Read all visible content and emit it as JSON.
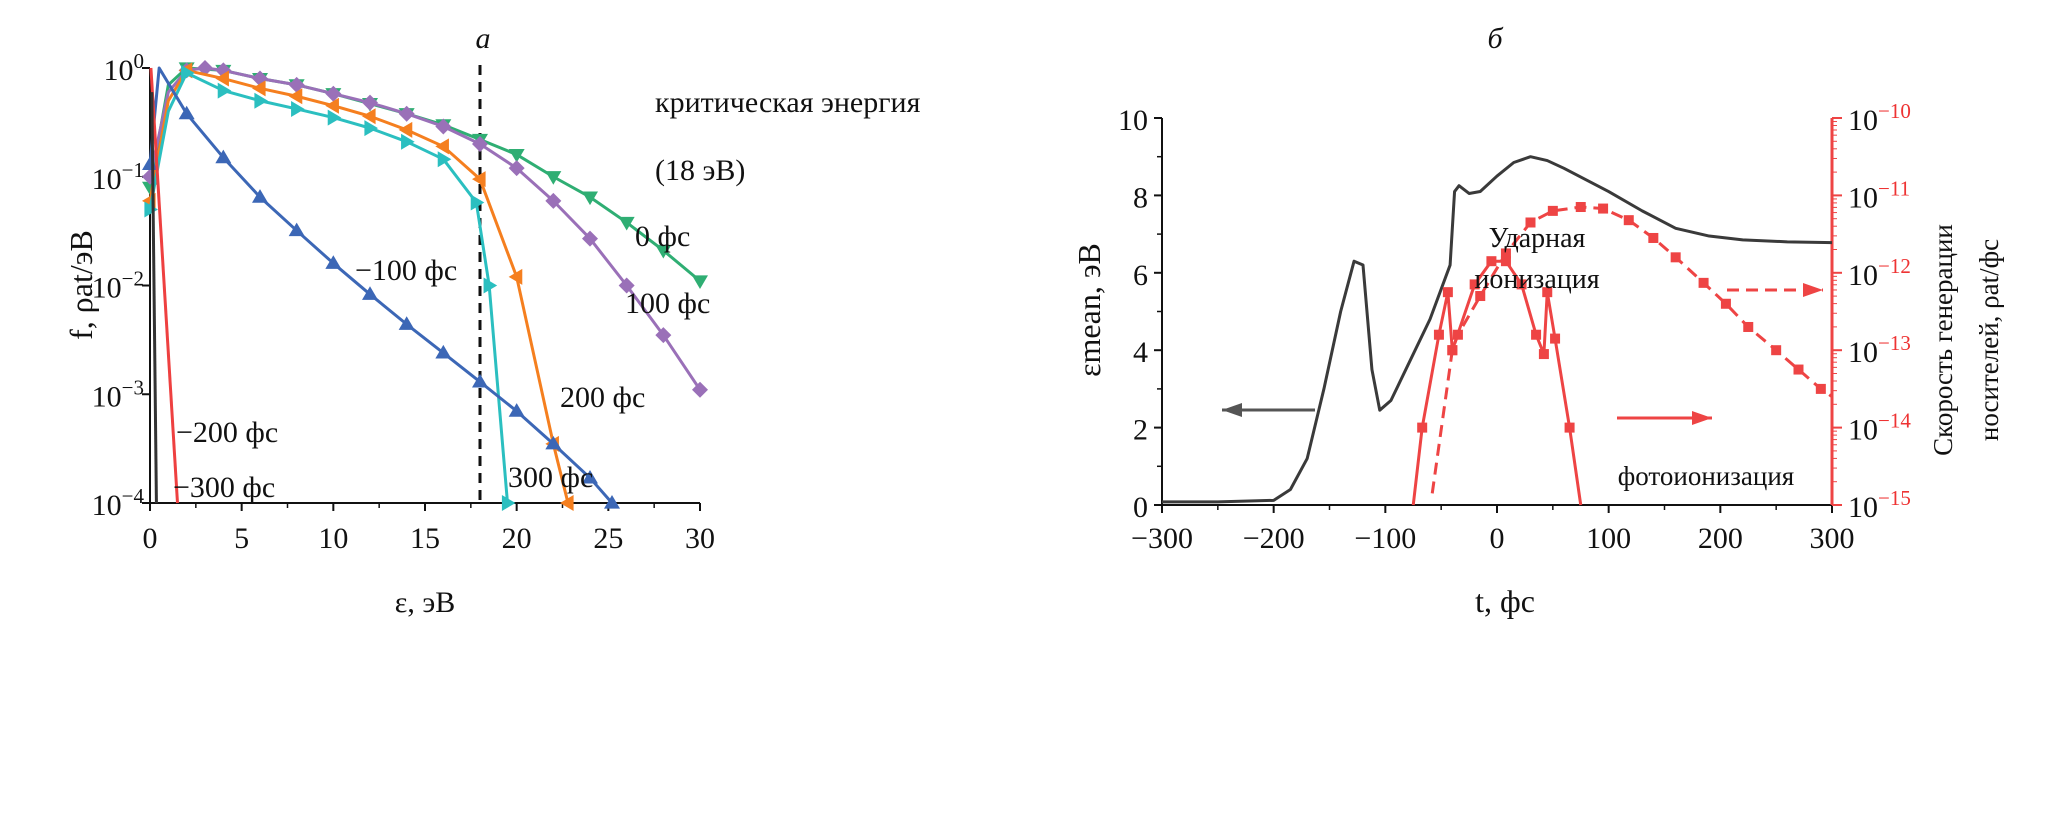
{
  "chart_data": [
    {
      "panel": "а",
      "type": "line",
      "xlabel": "ε, эВ",
      "ylabel": "f, ρat/эВ",
      "xlim": [
        0,
        30
      ],
      "ylim_log10": [
        -4,
        0
      ],
      "yscale": "log",
      "xticks": [
        "0",
        "5",
        "10",
        "15",
        "20",
        "25",
        "30"
      ],
      "yticks": [
        "10^0",
        "10^−1",
        "10^−2",
        "10^−3",
        "10^−4"
      ],
      "annotation": {
        "line1": "критическая энергия",
        "line2": "(18 эВ)",
        "x": 18
      },
      "series": [
        {
          "name": "0 фс",
          "color": "#2fae73",
          "marker": "tri-down",
          "points": [
            [
              0,
              0.08
            ],
            [
              1,
              0.7
            ],
            [
              2,
              1.0
            ],
            [
              4,
              0.95
            ],
            [
              6,
              0.8
            ],
            [
              8,
              0.7
            ],
            [
              10,
              0.58
            ],
            [
              12,
              0.47
            ],
            [
              14,
              0.38
            ],
            [
              16,
              0.3
            ],
            [
              18,
              0.22
            ],
            [
              20,
              0.16
            ],
            [
              22,
              0.1
            ],
            [
              24,
              0.065
            ],
            [
              26,
              0.038
            ],
            [
              28,
              0.021
            ],
            [
              30,
              0.011
            ]
          ]
        },
        {
          "name": "100 фс",
          "color": "#9a70b8",
          "marker": "diamond",
          "points": [
            [
              0,
              0.1
            ],
            [
              1,
              0.6
            ],
            [
              2,
              0.95
            ],
            [
              3,
              1.0
            ],
            [
              4,
              0.95
            ],
            [
              6,
              0.8
            ],
            [
              8,
              0.7
            ],
            [
              10,
              0.58
            ],
            [
              12,
              0.48
            ],
            [
              14,
              0.38
            ],
            [
              16,
              0.29
            ],
            [
              18,
              0.2
            ],
            [
              20,
              0.12
            ],
            [
              22,
              0.06
            ],
            [
              24,
              0.027
            ],
            [
              26,
              0.01
            ],
            [
              28,
              0.0035
            ],
            [
              30,
              0.0011
            ]
          ]
        },
        {
          "name": "200 фс",
          "color": "#f57f1f",
          "marker": "tri-left",
          "points": [
            [
              0,
              0.06
            ],
            [
              1,
              0.5
            ],
            [
              2,
              0.95
            ],
            [
              4,
              0.8
            ],
            [
              6,
              0.65
            ],
            [
              8,
              0.55
            ],
            [
              10,
              0.45
            ],
            [
              12,
              0.36
            ],
            [
              14,
              0.27
            ],
            [
              16,
              0.19
            ],
            [
              18,
              0.095
            ],
            [
              20,
              0.012
            ],
            [
              22,
              0.00035
            ],
            [
              22.8,
              0.0001
            ]
          ]
        },
        {
          "name": "300 фс",
          "color": "#2bbfc0",
          "marker": "tri-right",
          "points": [
            [
              0,
              0.05
            ],
            [
              1,
              0.4
            ],
            [
              2,
              0.9
            ],
            [
              4,
              0.62
            ],
            [
              6,
              0.5
            ],
            [
              8,
              0.42
            ],
            [
              10,
              0.35
            ],
            [
              12,
              0.28
            ],
            [
              14,
              0.21
            ],
            [
              16,
              0.145
            ],
            [
              17.8,
              0.058
            ],
            [
              18.5,
              0.01
            ],
            [
              19.5,
              0.0001
            ]
          ]
        },
        {
          "name": "−100 фс",
          "color": "#3c67b6",
          "marker": "tri-up",
          "points": [
            [
              0,
              0.13
            ],
            [
              0.5,
              1.0
            ],
            [
              2,
              0.38
            ],
            [
              4,
              0.15
            ],
            [
              6,
              0.065
            ],
            [
              8,
              0.032
            ],
            [
              10,
              0.016
            ],
            [
              12,
              0.0083
            ],
            [
              14,
              0.0044
            ],
            [
              16,
              0.0024
            ],
            [
              18,
              0.0013
            ],
            [
              20,
              0.0007
            ],
            [
              22,
              0.00035
            ],
            [
              24,
              0.00017
            ],
            [
              25.2,
              0.0001
            ]
          ]
        },
        {
          "name": "−200 фс",
          "color": "#ee4040",
          "marker": "none",
          "points": [
            [
              0.05,
              1.0
            ],
            [
              1.5,
              0.0001
            ]
          ]
        },
        {
          "name": "−300 фс",
          "color": "#333333",
          "marker": "none",
          "points": [
            [
              0.1,
              0.6
            ],
            [
              0.35,
              0.0001
            ]
          ]
        }
      ]
    },
    {
      "panel": "б",
      "type": "line",
      "xlabel": "t, фс",
      "ylabel": "εmean, эВ",
      "y2label_line1": "Скорость генерации",
      "y2label_line2": "носителей, ρat/фс",
      "xlim": [
        -300,
        300
      ],
      "ylim": [
        0,
        10
      ],
      "y2lim_log10": [
        -15,
        -10
      ],
      "xticks": [
        "−300",
        "−200",
        "−100",
        "0",
        "100",
        "200",
        "300"
      ],
      "yticks": [
        "0",
        "2",
        "4",
        "6",
        "8",
        "10"
      ],
      "y2ticks": [
        "10^−15",
        "10^−14",
        "10^−13",
        "10^−12",
        "10^−11",
        "10^−10"
      ],
      "labels": {
        "impact_1": "Ударная",
        "impact_2": "ионизация",
        "photo": "фотоионизация"
      },
      "series": [
        {
          "name": "mean energy",
          "axis": "left",
          "color": "#3a3a3a",
          "points": [
            [
              -300,
              0.08
            ],
            [
              -250,
              0.08
            ],
            [
              -200,
              0.12
            ],
            [
              -185,
              0.4
            ],
            [
              -170,
              1.2
            ],
            [
              -155,
              3
            ],
            [
              -140,
              5
            ],
            [
              -128,
              6.3
            ],
            [
              -120,
              6.2
            ],
            [
              -112,
              3.5
            ],
            [
              -105,
              2.45
            ],
            [
              -95,
              2.7
            ],
            [
              -80,
              3.6
            ],
            [
              -60,
              4.8
            ],
            [
              -42,
              6.2
            ],
            [
              -38,
              8.1
            ],
            [
              -34,
              8.25
            ],
            [
              -25,
              8.05
            ],
            [
              -15,
              8.1
            ],
            [
              0,
              8.5
            ],
            [
              15,
              8.85
            ],
            [
              30,
              9.0
            ],
            [
              45,
              8.9
            ],
            [
              60,
              8.7
            ],
            [
              80,
              8.4
            ],
            [
              100,
              8.1
            ],
            [
              130,
              7.6
            ],
            [
              160,
              7.15
            ],
            [
              190,
              6.95
            ],
            [
              220,
              6.85
            ],
            [
              260,
              6.8
            ],
            [
              300,
              6.78
            ]
          ]
        },
        {
          "name": "фотоионизация",
          "axis": "right",
          "color": "#ee4444",
          "dash": false,
          "points_log10": [
            [
              -75,
              -15
            ],
            [
              -67,
              -14
            ],
            [
              -52,
              -12.8
            ],
            [
              -44,
              -12.25
            ],
            [
              -40,
              -13.0
            ],
            [
              -20,
              -12.15
            ],
            [
              -5,
              -11.85
            ],
            [
              8,
              -11.85
            ],
            [
              22,
              -12.15
            ],
            [
              35,
              -12.8
            ],
            [
              42,
              -13.05
            ],
            [
              45,
              -12.25
            ],
            [
              52,
              -12.85
            ],
            [
              65,
              -14.0
            ],
            [
              75,
              -15
            ]
          ]
        },
        {
          "name": "Ударная ионизация",
          "axis": "right",
          "color": "#ee4444",
          "dash": true,
          "points_log10": [
            [
              -58,
              -14.85
            ],
            [
              -40,
              -13.0
            ],
            [
              -35,
              -12.8
            ],
            [
              -15,
              -12.3
            ],
            [
              8,
              -11.75
            ],
            [
              30,
              -11.35
            ],
            [
              50,
              -11.2
            ],
            [
              75,
              -11.15
            ],
            [
              95,
              -11.17
            ],
            [
              118,
              -11.32
            ],
            [
              140,
              -11.55
            ],
            [
              160,
              -11.8
            ],
            [
              185,
              -12.13
            ],
            [
              205,
              -12.4
            ],
            [
              225,
              -12.7
            ],
            [
              250,
              -13.0
            ],
            [
              270,
              -13.25
            ],
            [
              290,
              -13.5
            ],
            [
              300,
              -13.6
            ]
          ]
        }
      ]
    }
  ]
}
